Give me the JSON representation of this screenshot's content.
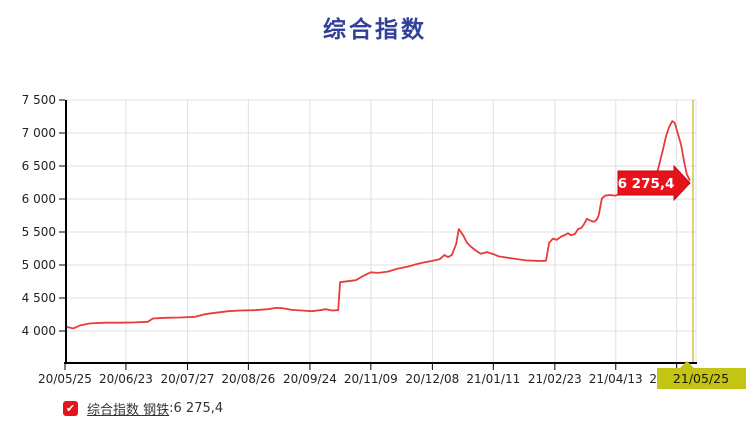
{
  "title": {
    "text": "综合指数"
  },
  "colors": {
    "title": "#334099",
    "line": "#e63c3c",
    "grid": "#e0e0e0",
    "axis": "#000000",
    "tick_text": "#222222",
    "value_label_bg": "#e8121c",
    "value_label_border": "#c00812",
    "value_label_text": "#ffffff",
    "cursor_line": "#c0b41c",
    "cursor_box_bg": "#c3c414",
    "cursor_box_text": "#1a1a00",
    "checkbox": "#e8121c",
    "legend_text": "#333333"
  },
  "chart_data": {
    "type": "line",
    "title": "综合指数",
    "xlabel": "",
    "ylabel": "",
    "grid": true,
    "ylim": [
      3515,
      7500
    ],
    "y_ticks": [
      {
        "label": "7 500",
        "value": 7500
      },
      {
        "label": "7 000",
        "value": 7000
      },
      {
        "label": "6 500",
        "value": 6500
      },
      {
        "label": "6 000",
        "value": 6000
      },
      {
        "label": "5 500",
        "value": 5500
      },
      {
        "label": "5 000",
        "value": 5000
      },
      {
        "label": "4 500",
        "value": 4500
      },
      {
        "label": "4 000",
        "value": 4000
      }
    ],
    "x_ticks": [
      {
        "label": "20/05/25",
        "pct": 0
      },
      {
        "label": "20/06/23",
        "pct": 9.7
      },
      {
        "label": "20/07/27",
        "pct": 19.5
      },
      {
        "label": "20/08/26",
        "pct": 29.2
      },
      {
        "label": "20/09/24",
        "pct": 39.0
      },
      {
        "label": "20/11/09",
        "pct": 48.7
      },
      {
        "label": "20/12/08",
        "pct": 58.5
      },
      {
        "label": "21/01/11",
        "pct": 68.2
      },
      {
        "label": "21/02/23",
        "pct": 78.0
      },
      {
        "label": "21/04/13",
        "pct": 87.7
      },
      {
        "label": "2",
        "pct": 97.4,
        "clipped": true
      }
    ],
    "cursor": {
      "pct": 100,
      "date_label": "21/05/25",
      "value_label": "6 275,4"
    },
    "series": [
      {
        "name": "综合指数 钢铁",
        "latest_value_label": "6 275,4",
        "points": [
          [
            0.3,
            4060
          ],
          [
            1.3,
            4040
          ],
          [
            2.4,
            4085
          ],
          [
            4.0,
            4115
          ],
          [
            6.4,
            4125
          ],
          [
            8.8,
            4125
          ],
          [
            11.1,
            4130
          ],
          [
            13.2,
            4140
          ],
          [
            14.0,
            4190
          ],
          [
            15.9,
            4200
          ],
          [
            18.3,
            4205
          ],
          [
            20.7,
            4215
          ],
          [
            22.3,
            4255
          ],
          [
            23.9,
            4275
          ],
          [
            26.0,
            4300
          ],
          [
            27.9,
            4310
          ],
          [
            30.3,
            4315
          ],
          [
            32.3,
            4330
          ],
          [
            33.6,
            4350
          ],
          [
            34.7,
            4345
          ],
          [
            36.1,
            4320
          ],
          [
            37.7,
            4310
          ],
          [
            39.3,
            4300
          ],
          [
            40.6,
            4315
          ],
          [
            41.6,
            4330
          ],
          [
            42.5,
            4310
          ],
          [
            43.5,
            4315
          ],
          [
            43.8,
            4740
          ],
          [
            45.1,
            4755
          ],
          [
            46.3,
            4770
          ],
          [
            47.6,
            4840
          ],
          [
            48.7,
            4890
          ],
          [
            49.8,
            4880
          ],
          [
            51.4,
            4900
          ],
          [
            53.0,
            4945
          ],
          [
            54.6,
            4975
          ],
          [
            55.9,
            5010
          ],
          [
            57.2,
            5040
          ],
          [
            58.4,
            5060
          ],
          [
            59.7,
            5090
          ],
          [
            60.4,
            5150
          ],
          [
            61.0,
            5120
          ],
          [
            61.6,
            5150
          ],
          [
            62.3,
            5320
          ],
          [
            62.7,
            5545
          ],
          [
            63.4,
            5450
          ],
          [
            64.0,
            5340
          ],
          [
            64.6,
            5280
          ],
          [
            65.4,
            5220
          ],
          [
            66.2,
            5170
          ],
          [
            67.2,
            5195
          ],
          [
            68.2,
            5165
          ],
          [
            69.1,
            5130
          ],
          [
            70.1,
            5115
          ],
          [
            71.2,
            5100
          ],
          [
            72.3,
            5085
          ],
          [
            73.4,
            5070
          ],
          [
            74.5,
            5065
          ],
          [
            75.6,
            5060
          ],
          [
            76.6,
            5065
          ],
          [
            77.1,
            5340
          ],
          [
            77.7,
            5400
          ],
          [
            78.3,
            5380
          ],
          [
            79.0,
            5430
          ],
          [
            79.6,
            5455
          ],
          [
            80.1,
            5480
          ],
          [
            80.6,
            5450
          ],
          [
            81.2,
            5470
          ],
          [
            81.7,
            5545
          ],
          [
            82.2,
            5560
          ],
          [
            82.6,
            5610
          ],
          [
            83.1,
            5700
          ],
          [
            83.6,
            5675
          ],
          [
            84.2,
            5655
          ],
          [
            84.7,
            5690
          ],
          [
            85.0,
            5760
          ],
          [
            85.5,
            6010
          ],
          [
            86.0,
            6050
          ],
          [
            86.8,
            6060
          ],
          [
            87.6,
            6050
          ],
          [
            88.4,
            6075
          ],
          [
            89.3,
            6100
          ],
          [
            90.3,
            6140
          ],
          [
            91.2,
            6180
          ],
          [
            92.2,
            6230
          ],
          [
            93.2,
            6260
          ],
          [
            93.9,
            6330
          ],
          [
            94.4,
            6440
          ],
          [
            95.1,
            6700
          ],
          [
            95.7,
            6950
          ],
          [
            96.2,
            7090
          ],
          [
            96.7,
            7180
          ],
          [
            97.1,
            7150
          ],
          [
            97.6,
            6990
          ],
          [
            98.1,
            6820
          ],
          [
            98.6,
            6560
          ],
          [
            99.0,
            6380
          ],
          [
            99.5,
            6275
          ]
        ]
      }
    ]
  },
  "legend": {
    "check_icon": "✔",
    "label": "综合指数 钢铁",
    "separator": " : ",
    "value": "6 275,4"
  }
}
